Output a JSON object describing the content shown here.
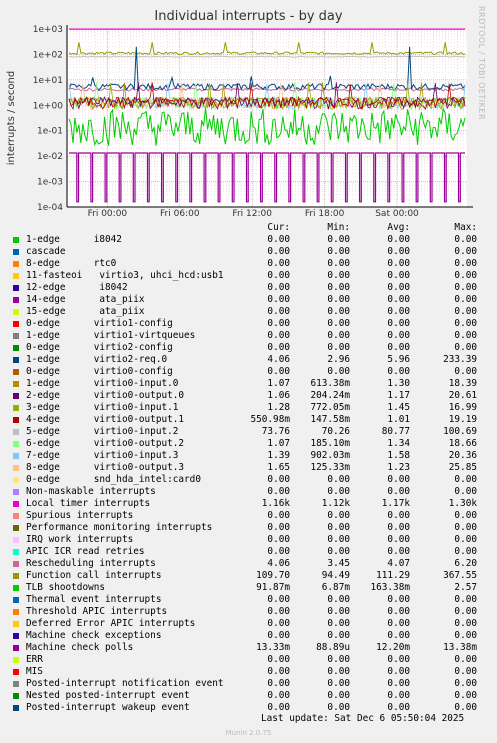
{
  "title": "Individual interrupts - by day",
  "side_text": "RRDTOOL / TOBI OETIKER",
  "columns": {
    "cur": "Cur:",
    "min": "Min:",
    "avg": "Avg:",
    "max": "Max:"
  },
  "last_update": "Last update: Sat Dec  6 05:50:04 2025",
  "footer": "Munin 2.0.75",
  "chart_data": {
    "type": "line",
    "title": "Individual interrupts - by day",
    "ylabel": "interrupts / second",
    "y_scale": "log",
    "ylim": [
      0.0001,
      1000
    ],
    "y_ticks": [
      "1e+03",
      "1e+02",
      "1e+01",
      "1e+00",
      "1e-01",
      "1e-02",
      "1e-03",
      "1e-04"
    ],
    "x_ticks": [
      "Fri 00:00",
      "Fri 06:00",
      "Fri 12:00",
      "Fri 18:00",
      "Sat 00:00"
    ],
    "grid": true,
    "legend_position": "bottom",
    "series": [
      {
        "name": "1-edge      i8042",
        "color": "#00cc00",
        "cur": "0.00",
        "min": "0.00",
        "avg": "0.00",
        "max": "0.00"
      },
      {
        "name": "cascade",
        "color": "#0066b3",
        "cur": "0.00",
        "min": "0.00",
        "avg": "0.00",
        "max": "0.00"
      },
      {
        "name": "8-edge      rtc0",
        "color": "#ff8000",
        "cur": "0.00",
        "min": "0.00",
        "avg": "0.00",
        "max": "0.00"
      },
      {
        "name": "11-fasteoi   virtio3, uhci_hcd:usb1",
        "color": "#ffcc00",
        "cur": "0.00",
        "min": "0.00",
        "avg": "0.00",
        "max": "0.00"
      },
      {
        "name": "12-edge      i8042",
        "color": "#330099",
        "cur": "0.00",
        "min": "0.00",
        "avg": "0.00",
        "max": "0.00"
      },
      {
        "name": "14-edge      ata_piix",
        "color": "#990099",
        "cur": "0.00",
        "min": "0.00",
        "avg": "0.00",
        "max": "0.00"
      },
      {
        "name": "15-edge      ata_piix",
        "color": "#ccff00",
        "cur": "0.00",
        "min": "0.00",
        "avg": "0.00",
        "max": "0.00"
      },
      {
        "name": "0-edge      virtio1-config",
        "color": "#ff0000",
        "cur": "0.00",
        "min": "0.00",
        "avg": "0.00",
        "max": "0.00"
      },
      {
        "name": "1-edge      virtio1-virtqueues",
        "color": "#808080",
        "cur": "0.00",
        "min": "0.00",
        "avg": "0.00",
        "max": "0.00"
      },
      {
        "name": "0-edge      virtio2-config",
        "color": "#008f00",
        "cur": "0.00",
        "min": "0.00",
        "avg": "0.00",
        "max": "0.00"
      },
      {
        "name": "1-edge      virtio2-req.0",
        "color": "#00487d",
        "cur": "4.06",
        "min": "2.96",
        "avg": "5.96",
        "max": "233.39"
      },
      {
        "name": "0-edge      virtio0-config",
        "color": "#b35a00",
        "cur": "0.00",
        "min": "0.00",
        "avg": "0.00",
        "max": "0.00"
      },
      {
        "name": "1-edge      virtio0-input.0",
        "color": "#b38f00",
        "cur": "1.07",
        "min": "613.38m",
        "avg": "1.30",
        "max": "18.39"
      },
      {
        "name": "2-edge      virtio0-output.0",
        "color": "#6b006b",
        "cur": "1.06",
        "min": "204.24m",
        "avg": "1.17",
        "max": "20.61"
      },
      {
        "name": "3-edge      virtio0-input.1",
        "color": "#8fb300",
        "cur": "1.28",
        "min": "772.05m",
        "avg": "1.45",
        "max": "16.99"
      },
      {
        "name": "4-edge      virtio0-output.1",
        "color": "#b30000",
        "cur": "550.98m",
        "min": "147.58m",
        "avg": "1.01",
        "max": "19.19"
      },
      {
        "name": "5-edge      virtio0-input.2",
        "color": "#bebebe",
        "cur": "73.76",
        "min": "70.26",
        "avg": "80.77",
        "max": "100.69"
      },
      {
        "name": "6-edge      virtio0-output.2",
        "color": "#80ff80",
        "cur": "1.07",
        "min": "185.10m",
        "avg": "1.34",
        "max": "18.66"
      },
      {
        "name": "7-edge      virtio0-input.3",
        "color": "#80c9ff",
        "cur": "1.39",
        "min": "902.03m",
        "avg": "1.58",
        "max": "20.36"
      },
      {
        "name": "8-edge      virtio0-output.3",
        "color": "#ffc080",
        "cur": "1.65",
        "min": "125.33m",
        "avg": "1.23",
        "max": "25.85"
      },
      {
        "name": "0-edge      snd_hda_intel:card0",
        "color": "#ffe680",
        "cur": "0.00",
        "min": "0.00",
        "avg": "0.00",
        "max": "0.00"
      },
      {
        "name": "Non-maskable interrupts",
        "color": "#aa80ff",
        "cur": "0.00",
        "min": "0.00",
        "avg": "0.00",
        "max": "0.00"
      },
      {
        "name": "Local timer interrupts",
        "color": "#ee00cc",
        "cur": "1.16k",
        "min": "1.12k",
        "avg": "1.17k",
        "max": "1.30k"
      },
      {
        "name": "Spurious interrupts",
        "color": "#ff8080",
        "cur": "0.00",
        "min": "0.00",
        "avg": "0.00",
        "max": "0.00"
      },
      {
        "name": "Performance monitoring interrupts",
        "color": "#666600",
        "cur": "0.00",
        "min": "0.00",
        "avg": "0.00",
        "max": "0.00"
      },
      {
        "name": "IRQ work interrupts",
        "color": "#ffbfff",
        "cur": "0.00",
        "min": "0.00",
        "avg": "0.00",
        "max": "0.00"
      },
      {
        "name": "APIC ICR read retries",
        "color": "#00ffcc",
        "cur": "0.00",
        "min": "0.00",
        "avg": "0.00",
        "max": "0.00"
      },
      {
        "name": "Rescheduling interrupts",
        "color": "#cc6699",
        "cur": "4.06",
        "min": "3.45",
        "avg": "4.07",
        "max": "6.20"
      },
      {
        "name": "Function call interrupts",
        "color": "#999900",
        "cur": "109.70",
        "min": "94.49",
        "avg": "111.29",
        "max": "367.55"
      },
      {
        "name": "TLB shootdowns",
        "color": "#00cc00",
        "cur": "91.87m",
        "min": "6.87m",
        "avg": "163.38m",
        "max": "2.57"
      },
      {
        "name": "Thermal event interrupts",
        "color": "#0066b3",
        "cur": "0.00",
        "min": "0.00",
        "avg": "0.00",
        "max": "0.00"
      },
      {
        "name": "Threshold APIC interrupts",
        "color": "#ff8000",
        "cur": "0.00",
        "min": "0.00",
        "avg": "0.00",
        "max": "0.00"
      },
      {
        "name": "Deferred Error APIC interrupts",
        "color": "#ffcc00",
        "cur": "0.00",
        "min": "0.00",
        "avg": "0.00",
        "max": "0.00"
      },
      {
        "name": "Machine check exceptions",
        "color": "#330099",
        "cur": "0.00",
        "min": "0.00",
        "avg": "0.00",
        "max": "0.00"
      },
      {
        "name": "Machine check polls",
        "color": "#990099",
        "cur": "13.33m",
        "min": "88.89u",
        "avg": "12.20m",
        "max": "13.38m"
      },
      {
        "name": "ERR",
        "color": "#ccff00",
        "cur": "0.00",
        "min": "0.00",
        "avg": "0.00",
        "max": "0.00"
      },
      {
        "name": "MIS",
        "color": "#ff0000",
        "cur": "0.00",
        "min": "0.00",
        "avg": "0.00",
        "max": "0.00"
      },
      {
        "name": "Posted-interrupt notification event",
        "color": "#808080",
        "cur": "0.00",
        "min": "0.00",
        "avg": "0.00",
        "max": "0.00"
      },
      {
        "name": "Nested posted-interrupt event",
        "color": "#008f00",
        "cur": "0.00",
        "min": "0.00",
        "avg": "0.00",
        "max": "0.00"
      },
      {
        "name": "Posted-interrupt wakeup event",
        "color": "#00487d",
        "cur": "0.00",
        "min": "0.00",
        "avg": "0.00",
        "max": "0.00"
      }
    ]
  }
}
